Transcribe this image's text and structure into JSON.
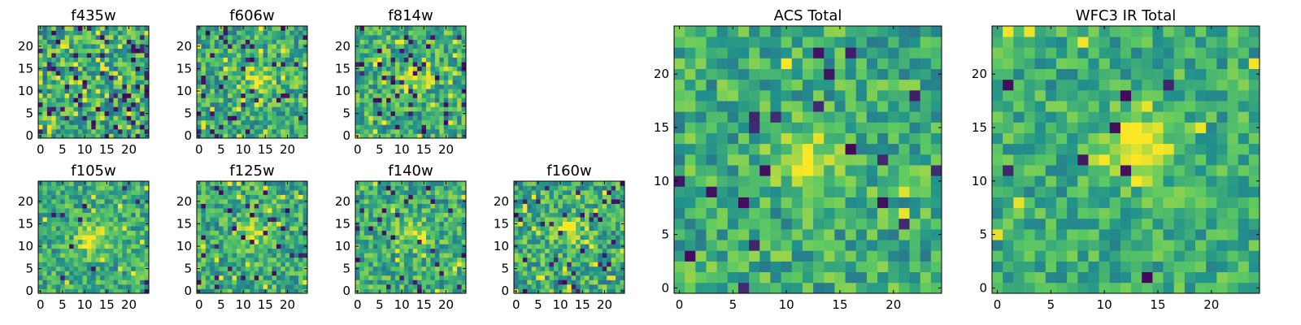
{
  "figure": {
    "colormap": "viridis",
    "colormap_stops": [
      "#440154",
      "#3b528b",
      "#21918c",
      "#5ec962",
      "#fde725"
    ]
  },
  "chart_data": [
    {
      "id": "f435w",
      "type": "heatmap",
      "title": "f435w",
      "grid_size": [
        25,
        25
      ],
      "xlim": [
        -0.5,
        24.5
      ],
      "ylim": [
        -0.5,
        24.5
      ],
      "x_ticks": [
        "0",
        "5",
        "10",
        "15",
        "20"
      ],
      "y_ticks": [
        "0",
        "5",
        "10",
        "15",
        "20"
      ],
      "origin": "lower",
      "seed": 11,
      "peak": [
        12,
        12
      ],
      "peak_strength": 0.05,
      "noise": 1.0,
      "outlier_rate": 0.1
    },
    {
      "id": "f606w",
      "type": "heatmap",
      "title": "f606w",
      "grid_size": [
        25,
        25
      ],
      "xlim": [
        -0.5,
        24.5
      ],
      "ylim": [
        -0.5,
        24.5
      ],
      "x_ticks": [
        "0",
        "5",
        "10",
        "15",
        "20"
      ],
      "y_ticks": [
        "0",
        "5",
        "10",
        "15",
        "20"
      ],
      "origin": "lower",
      "seed": 23,
      "peak": [
        13,
        13
      ],
      "peak_strength": 0.25,
      "noise": 0.9,
      "outlier_rate": 0.06
    },
    {
      "id": "f814w",
      "type": "heatmap",
      "title": "f814w",
      "grid_size": [
        25,
        25
      ],
      "xlim": [
        -0.5,
        24.5
      ],
      "ylim": [
        -0.5,
        24.5
      ],
      "x_ticks": [
        "0",
        "5",
        "10",
        "15",
        "20"
      ],
      "y_ticks": [
        "0",
        "5",
        "10",
        "15",
        "20"
      ],
      "origin": "lower",
      "seed": 37,
      "peak": [
        13,
        13
      ],
      "peak_strength": 0.3,
      "noise": 0.9,
      "outlier_rate": 0.06
    },
    {
      "id": "f105w",
      "type": "heatmap",
      "title": "f105w",
      "grid_size": [
        25,
        25
      ],
      "xlim": [
        -0.5,
        24.5
      ],
      "ylim": [
        -0.5,
        24.5
      ],
      "x_ticks": [
        "0",
        "5",
        "10",
        "15",
        "20"
      ],
      "y_ticks": [
        "0",
        "5",
        "10",
        "15",
        "20"
      ],
      "origin": "lower",
      "seed": 41,
      "peak": [
        12,
        12
      ],
      "peak_strength": 0.4,
      "noise": 0.8,
      "outlier_rate": 0.03
    },
    {
      "id": "f125w",
      "type": "heatmap",
      "title": "f125w",
      "grid_size": [
        25,
        25
      ],
      "xlim": [
        -0.5,
        24.5
      ],
      "ylim": [
        -0.5,
        24.5
      ],
      "x_ticks": [
        "0",
        "5",
        "10",
        "15",
        "20"
      ],
      "y_ticks": [
        "0",
        "5",
        "10",
        "15",
        "20"
      ],
      "origin": "lower",
      "seed": 53,
      "peak": [
        12,
        12
      ],
      "peak_strength": 0.3,
      "noise": 0.85,
      "outlier_rate": 0.04
    },
    {
      "id": "f140w",
      "type": "heatmap",
      "title": "f140w",
      "grid_size": [
        25,
        25
      ],
      "xlim": [
        -0.5,
        24.5
      ],
      "ylim": [
        -0.5,
        24.5
      ],
      "x_ticks": [
        "0",
        "5",
        "10",
        "15",
        "20"
      ],
      "y_ticks": [
        "0",
        "5",
        "10",
        "15",
        "20"
      ],
      "origin": "lower",
      "seed": 67,
      "peak": [
        13,
        13
      ],
      "peak_strength": 0.35,
      "noise": 0.85,
      "outlier_rate": 0.04
    },
    {
      "id": "f160w",
      "type": "heatmap",
      "title": "f160w",
      "grid_size": [
        25,
        25
      ],
      "xlim": [
        -0.5,
        24.5
      ],
      "ylim": [
        -0.5,
        24.5
      ],
      "x_ticks": [
        "0",
        "5",
        "10",
        "15",
        "20"
      ],
      "y_ticks": [
        "0",
        "5",
        "10",
        "15",
        "20"
      ],
      "origin": "lower",
      "seed": 79,
      "peak": [
        12,
        14
      ],
      "peak_strength": 0.3,
      "noise": 0.9,
      "outlier_rate": 0.06
    },
    {
      "id": "acs_total",
      "type": "heatmap",
      "title": "ACS Total",
      "grid_size": [
        25,
        25
      ],
      "xlim": [
        -0.5,
        24.5
      ],
      "ylim": [
        -0.5,
        24.5
      ],
      "x_ticks": [
        "0",
        "5",
        "10",
        "15",
        "20"
      ],
      "y_ticks": [
        "0",
        "5",
        "10",
        "15",
        "20"
      ],
      "origin": "lower",
      "seed": 97,
      "peak": [
        12,
        12
      ],
      "peak_strength": 0.35,
      "noise": 0.8,
      "outlier_rate": 0.03
    },
    {
      "id": "wfc3_ir_total",
      "type": "heatmap",
      "title": "WFC3 IR Total",
      "grid_size": [
        25,
        25
      ],
      "xlim": [
        -0.5,
        24.5
      ],
      "ylim": [
        -0.5,
        24.5
      ],
      "x_ticks": [
        "0",
        "5",
        "10",
        "15",
        "20"
      ],
      "y_ticks": [
        "0",
        "5",
        "10",
        "15",
        "20"
      ],
      "origin": "lower",
      "seed": 113,
      "peak": [
        13,
        13
      ],
      "peak_strength": 0.5,
      "noise": 0.7,
      "outlier_rate": 0.02
    }
  ]
}
